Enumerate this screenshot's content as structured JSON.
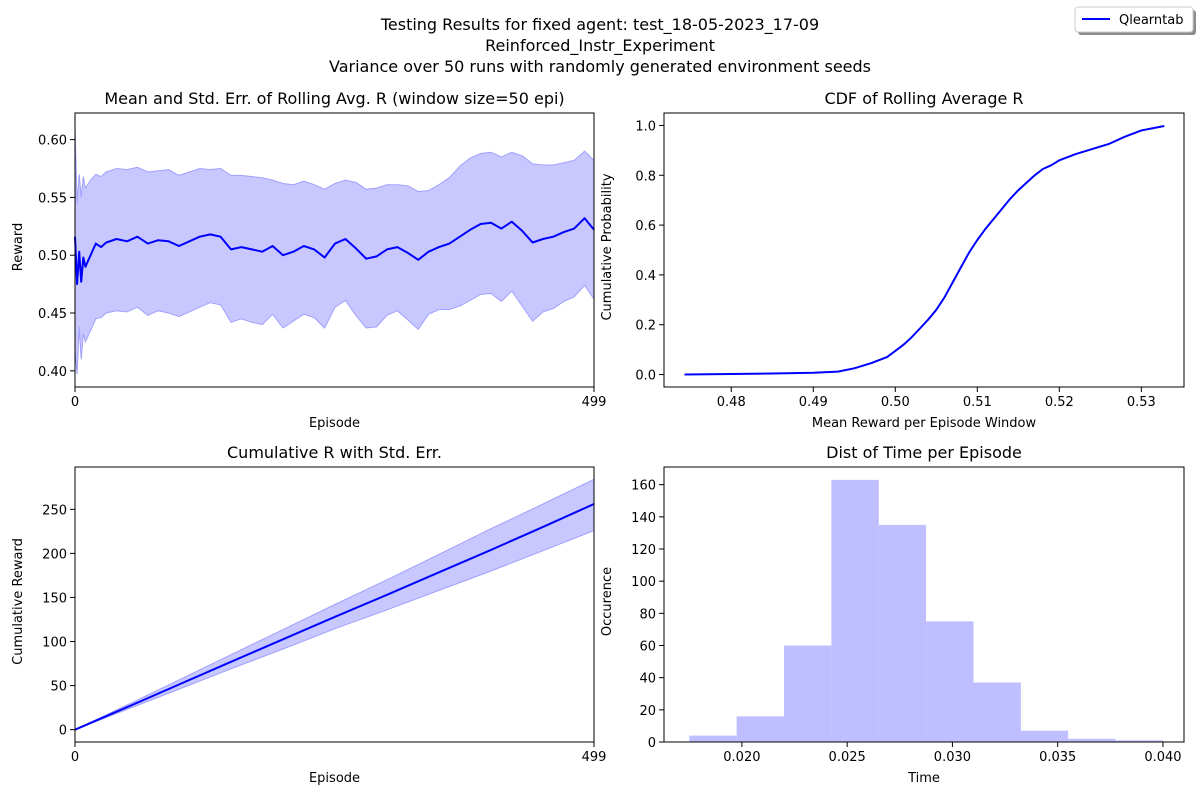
{
  "figure": {
    "suptitle_lines": [
      "Testing Results for fixed agent: test_18-05-2023_17-09",
      "Reinforced_Instr_Experiment",
      "Variance over 50 runs with randomly generated environment seeds"
    ],
    "legend": {
      "label": "Qlearntab",
      "color": "#0000ff",
      "placement": "top-right"
    }
  },
  "colors": {
    "line": "#0000ff",
    "fill": "#c8c8ff",
    "fill_edge": "#a0a0ff",
    "hist": "#bfbfff"
  },
  "chart_data": [
    {
      "type": "line",
      "title": "Mean and Std. Err. of Rolling Avg. R (window size=50 epi)",
      "xlabel": "Episode",
      "ylabel": "Reward",
      "xlim": [
        0,
        499
      ],
      "ylim": [
        0.386,
        0.623
      ],
      "xticks": [
        0,
        499
      ],
      "yticks": [
        0.4,
        0.45,
        0.5,
        0.55,
        0.6
      ],
      "ytick_labels": [
        "0.40",
        "0.45",
        "0.50",
        "0.55",
        "0.60"
      ],
      "series": [
        {
          "x": [
            0,
            2,
            4,
            6,
            8,
            10,
            15,
            20,
            25,
            30,
            40,
            50,
            60,
            70,
            80,
            90,
            100,
            110,
            120,
            130,
            140,
            150,
            160,
            170,
            180,
            190,
            200,
            210,
            220,
            230,
            240,
            250,
            260,
            270,
            280,
            290,
            300,
            310,
            320,
            330,
            340,
            350,
            360,
            370,
            380,
            390,
            400,
            410,
            420,
            430,
            440,
            450,
            460,
            470,
            480,
            490,
            499
          ],
          "mean": [
            0.516,
            0.475,
            0.503,
            0.477,
            0.498,
            0.49,
            0.5,
            0.51,
            0.507,
            0.511,
            0.514,
            0.512,
            0.516,
            0.51,
            0.513,
            0.512,
            0.508,
            0.512,
            0.516,
            0.518,
            0.516,
            0.505,
            0.507,
            0.505,
            0.503,
            0.508,
            0.5,
            0.503,
            0.508,
            0.505,
            0.498,
            0.51,
            0.514,
            0.506,
            0.497,
            0.499,
            0.505,
            0.507,
            0.502,
            0.496,
            0.503,
            0.507,
            0.51,
            0.516,
            0.522,
            0.527,
            0.528,
            0.523,
            0.529,
            0.521,
            0.511,
            0.514,
            0.516,
            0.52,
            0.523,
            0.532,
            0.522
          ],
          "upper": [
            0.611,
            0.545,
            0.57,
            0.55,
            0.568,
            0.558,
            0.565,
            0.57,
            0.568,
            0.572,
            0.575,
            0.574,
            0.576,
            0.572,
            0.573,
            0.574,
            0.569,
            0.572,
            0.575,
            0.574,
            0.575,
            0.569,
            0.569,
            0.568,
            0.567,
            0.565,
            0.562,
            0.561,
            0.564,
            0.561,
            0.557,
            0.562,
            0.565,
            0.563,
            0.557,
            0.558,
            0.561,
            0.561,
            0.56,
            0.555,
            0.556,
            0.561,
            0.567,
            0.577,
            0.584,
            0.588,
            0.589,
            0.585,
            0.589,
            0.586,
            0.579,
            0.578,
            0.578,
            0.58,
            0.582,
            0.59,
            0.582
          ],
          "lower": [
            0.418,
            0.397,
            0.438,
            0.41,
            0.432,
            0.425,
            0.435,
            0.445,
            0.446,
            0.45,
            0.452,
            0.451,
            0.455,
            0.448,
            0.452,
            0.45,
            0.447,
            0.451,
            0.455,
            0.459,
            0.457,
            0.442,
            0.445,
            0.442,
            0.44,
            0.449,
            0.437,
            0.443,
            0.449,
            0.446,
            0.437,
            0.455,
            0.461,
            0.448,
            0.437,
            0.438,
            0.448,
            0.452,
            0.444,
            0.436,
            0.449,
            0.453,
            0.453,
            0.456,
            0.461,
            0.466,
            0.467,
            0.46,
            0.469,
            0.456,
            0.443,
            0.451,
            0.454,
            0.46,
            0.464,
            0.474,
            0.462
          ]
        }
      ]
    },
    {
      "type": "line",
      "title": "CDF of Rolling Average R",
      "xlabel": "Mean Reward per Episode Window",
      "ylabel": "Cumulative Probability",
      "xlim": [
        0.4718,
        0.5352
      ],
      "ylim": [
        -0.05,
        1.05
      ],
      "xticks": [
        0.48,
        0.49,
        0.5,
        0.51,
        0.52,
        0.53
      ],
      "xtick_labels": [
        "0.48",
        "0.49",
        "0.50",
        "0.51",
        "0.52",
        "0.53"
      ],
      "yticks": [
        0.0,
        0.2,
        0.4,
        0.6,
        0.8,
        1.0
      ],
      "ytick_labels": [
        "0.0",
        "0.2",
        "0.4",
        "0.6",
        "0.8",
        "1.0"
      ],
      "series": [
        {
          "x": [
            0.4743,
            0.48,
            0.485,
            0.49,
            0.493,
            0.495,
            0.497,
            0.499,
            0.5,
            0.501,
            0.502,
            0.503,
            0.504,
            0.505,
            0.506,
            0.507,
            0.508,
            0.509,
            0.51,
            0.511,
            0.512,
            0.513,
            0.514,
            0.515,
            0.516,
            0.517,
            0.518,
            0.519,
            0.52,
            0.522,
            0.524,
            0.526,
            0.528,
            0.53,
            0.5328
          ],
          "y": [
            0.0,
            0.002,
            0.004,
            0.007,
            0.012,
            0.025,
            0.045,
            0.07,
            0.095,
            0.12,
            0.15,
            0.185,
            0.22,
            0.26,
            0.31,
            0.37,
            0.43,
            0.49,
            0.54,
            0.585,
            0.625,
            0.665,
            0.705,
            0.74,
            0.77,
            0.8,
            0.825,
            0.84,
            0.86,
            0.885,
            0.905,
            0.925,
            0.955,
            0.98,
            0.998
          ]
        }
      ]
    },
    {
      "type": "line",
      "title": "Cumulative R with Std. Err.",
      "xlabel": "Episode",
      "ylabel": "Cumulative Reward",
      "xlim": [
        0,
        499
      ],
      "ylim": [
        -14,
        298
      ],
      "xticks": [
        0,
        499
      ],
      "yticks": [
        0,
        50,
        100,
        150,
        200,
        250
      ],
      "ytick_labels": [
        "0",
        "50",
        "100",
        "150",
        "200",
        "250"
      ],
      "series": [
        {
          "x": [
            0,
            50,
            100,
            150,
            200,
            250,
            300,
            350,
            400,
            450,
            499
          ],
          "mean": [
            0,
            25.5,
            51.2,
            77,
            102.5,
            128,
            153,
            178.5,
            204,
            230,
            256
          ],
          "upper": [
            0,
            28,
            56.5,
            85,
            113.5,
            142,
            170,
            199,
            228,
            256,
            284
          ],
          "lower": [
            0,
            23,
            46,
            69,
            91.5,
            114.5,
            136,
            158,
            180,
            203,
            226
          ]
        }
      ]
    },
    {
      "type": "bar",
      "title": "Dist of Time per Episode",
      "xlabel": "Time",
      "ylabel": "Occurence",
      "xlim": [
        0.0163,
        0.041
      ],
      "ylim": [
        0,
        171
      ],
      "xticks": [
        0.02,
        0.025,
        0.03,
        0.035,
        0.04
      ],
      "xtick_labels": [
        "0.020",
        "0.025",
        "0.030",
        "0.035",
        "0.040"
      ],
      "yticks": [
        0,
        20,
        40,
        60,
        80,
        100,
        120,
        140,
        160
      ],
      "ytick_labels": [
        "0",
        "20",
        "40",
        "60",
        "80",
        "100",
        "120",
        "140",
        "160"
      ],
      "bin_edges": [
        0.0175,
        0.01975,
        0.022,
        0.02425,
        0.0265,
        0.02875,
        0.031,
        0.03325,
        0.0355,
        0.03775,
        0.04
      ],
      "values": [
        4,
        16,
        60,
        163,
        135,
        75,
        37,
        7,
        2,
        1
      ]
    }
  ]
}
